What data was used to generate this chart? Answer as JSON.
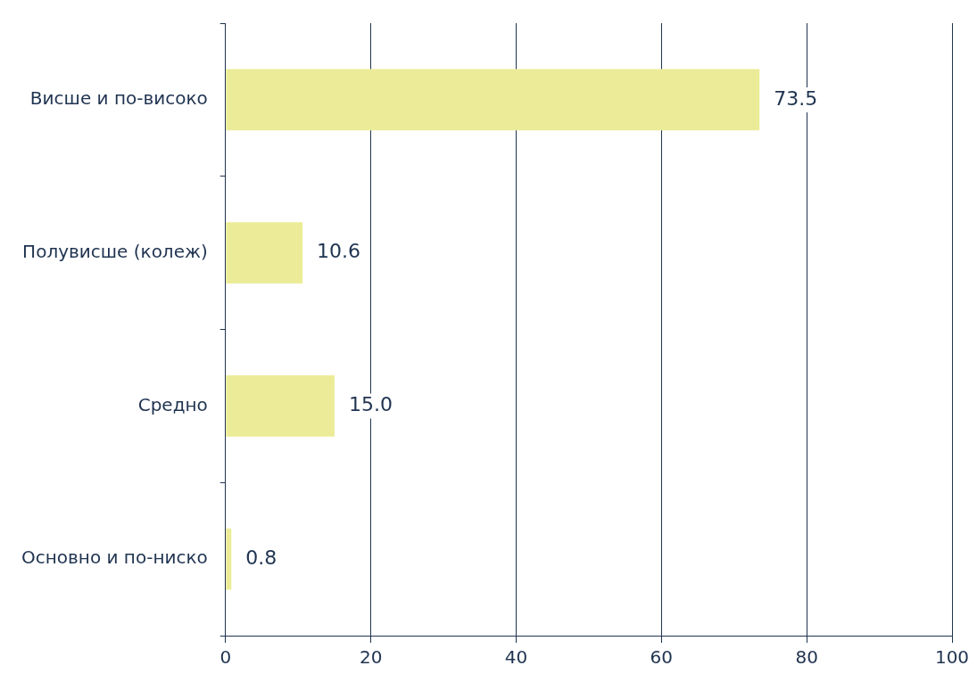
{
  "chart_data": {
    "type": "bar",
    "orientation": "horizontal",
    "categories": [
      "Висше и по-високо",
      "Полувисше (колеж)",
      "Средно",
      "Основно и по-ниско"
    ],
    "values": [
      73.5,
      10.6,
      15.0,
      0.8
    ],
    "value_labels": [
      "73.5",
      "10.6",
      "15.0",
      "0.8"
    ],
    "color": "#ecec98",
    "xlim": [
      0,
      100
    ],
    "xticks": [
      0,
      20,
      40,
      60,
      80,
      100
    ],
    "grid": "x",
    "legend": false
  }
}
